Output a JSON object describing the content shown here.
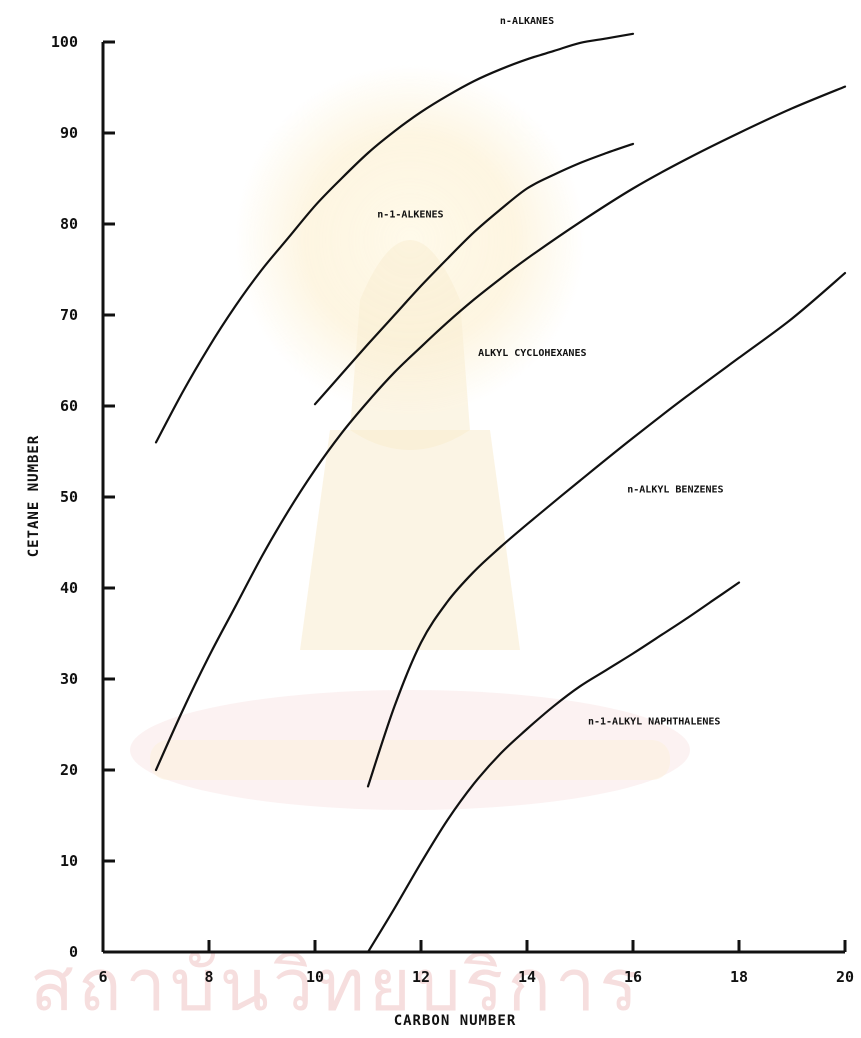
{
  "colors": {
    "line": "#111111",
    "background": "#ffffff",
    "watermark_glow": "#fbe8b8",
    "watermark_red": "#f6dede"
  },
  "watermark": {
    "text": "สถาบันวิทยบริการ"
  },
  "chart_data": {
    "type": "line",
    "title": "",
    "xlabel": "CARBON NUMBER",
    "ylabel": "CETANE NUMBER",
    "xlim": [
      6,
      20
    ],
    "ylim": [
      0,
      100
    ],
    "x_ticks": [
      6,
      8,
      10,
      12,
      14,
      16,
      18,
      20
    ],
    "x_tick_labels": [
      "6",
      "8",
      "10",
      "12",
      "14",
      "16",
      "18",
      "20"
    ],
    "y_ticks": [
      0,
      10,
      20,
      30,
      40,
      50,
      60,
      70,
      80,
      90,
      100
    ],
    "y_tick_labels": [
      "0",
      "10",
      "20",
      "30",
      "40",
      "50",
      "60",
      "70",
      "80",
      "90",
      "100"
    ],
    "grid": false,
    "legend": "none",
    "series": [
      {
        "name": "n-ALKANES",
        "x": [
          7,
          7.5,
          8,
          8.5,
          9,
          9.5,
          10,
          10.5,
          11,
          11.5,
          12,
          12.5,
          13,
          13.5,
          14,
          14.5,
          15,
          15.5,
          16
        ],
        "y": [
          56,
          61.5,
          66.5,
          71,
          75,
          78.5,
          82,
          85,
          87.8,
          90.2,
          92.3,
          94.1,
          95.7,
          97,
          98.1,
          99,
          99.9,
          100.4,
          100.9
        ]
      },
      {
        "name": "n-1-ALKENES",
        "x": [
          10,
          10.5,
          11,
          11.5,
          12,
          12.5,
          13,
          13.5,
          14,
          14.5,
          15,
          15.5,
          16
        ],
        "y": [
          60.2,
          63.5,
          66.8,
          70,
          73.2,
          76.2,
          79.1,
          81.6,
          83.9,
          85.4,
          86.7,
          87.8,
          88.8
        ]
      },
      {
        "name": "ALKYL CYCLOHEXANES",
        "x": [
          7,
          7.5,
          8,
          8.5,
          9,
          9.5,
          10,
          10.5,
          11,
          11.5,
          12,
          12.5,
          13,
          13.5,
          14,
          15,
          16,
          17,
          18,
          19,
          20
        ],
        "y": [
          20,
          26.5,
          32.5,
          38,
          43.5,
          48.5,
          53,
          57,
          60.5,
          63.7,
          66.5,
          69.2,
          71.7,
          74,
          76.2,
          80.2,
          83.9,
          87.1,
          90,
          92.7,
          95.1
        ]
      },
      {
        "name": "n-ALKYL BENZENES",
        "x": [
          11,
          11.5,
          12,
          12.5,
          13,
          13.5,
          14,
          15,
          16,
          17,
          18,
          19,
          20
        ],
        "y": [
          18.2,
          27,
          34,
          38.5,
          41.8,
          44.5,
          47,
          51.8,
          56.5,
          61,
          65.3,
          69.6,
          74.6
        ]
      },
      {
        "name": "n-1-ALKYL NAPHTHALENES",
        "x": [
          11,
          11.5,
          12,
          12.5,
          13,
          13.5,
          14,
          14.5,
          15,
          15.5,
          16,
          16.5,
          17,
          17.5,
          18
        ],
        "y": [
          0,
          4.8,
          9.8,
          14.5,
          18.5,
          21.8,
          24.5,
          27,
          29.2,
          31,
          32.8,
          34.7,
          36.6,
          38.6,
          40.6
        ]
      }
    ],
    "annotations": [
      {
        "text": "n-ALKANES",
        "series": "n-ALKANES"
      },
      {
        "text": "n-1-ALKENES",
        "series": "n-1-ALKENES"
      },
      {
        "text": "ALKYL CYCLOHEXANES",
        "series": "ALKYL CYCLOHEXANES"
      },
      {
        "text": "n-ALKYL BENZENES",
        "series": "n-ALKYL BENZENES"
      },
      {
        "text": "n-1-ALKYL NAPHTHALENES",
        "series": "n-1-ALKYL NAPHTHALENES"
      }
    ]
  }
}
